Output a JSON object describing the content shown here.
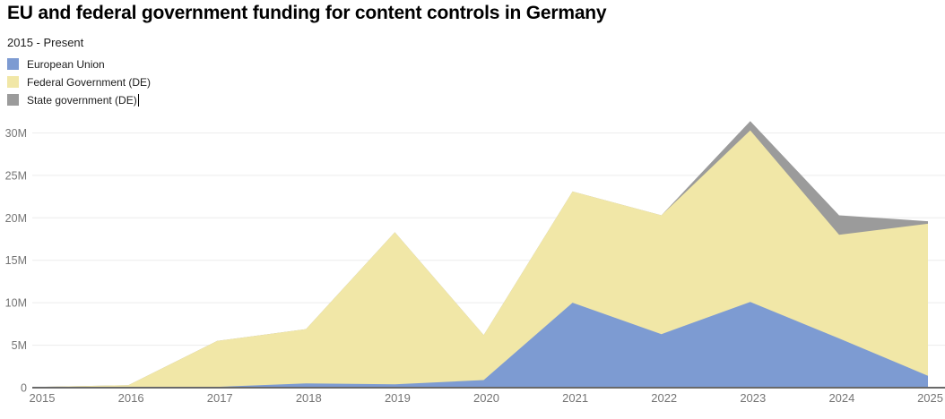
{
  "header": {
    "title": "EU and federal government funding for content controls in Germany",
    "subtitle": "2015 - Present"
  },
  "legend": {
    "caret_after_index": 2
  },
  "colors": {
    "background": "#ffffff",
    "gridline": "#ececec",
    "axis_line": "#696969",
    "tick_label": "#757575",
    "title_text": "#000000",
    "legend_text": "#1c1c1c"
  },
  "chart_data": {
    "type": "area",
    "stacked": true,
    "title": "EU and federal government funding for content controls in Germany",
    "subtitle": "2015 - Present",
    "x": [
      "2015",
      "2016",
      "2017",
      "2018",
      "2019",
      "2020",
      "2021",
      "2022",
      "2023",
      "2024",
      "2025"
    ],
    "units": "millions",
    "series": [
      {
        "name": "European Union",
        "color": "#7d9bd2",
        "values": [
          0,
          0,
          0.1,
          0.5,
          0.4,
          0.9,
          10,
          6.3,
          10.1,
          5.8,
          1.4
        ]
      },
      {
        "name": "Federal Government (DE)",
        "color": "#f1e7a7",
        "values": [
          0.1,
          0.3,
          5.4,
          6.4,
          17.9,
          5.3,
          13.1,
          14,
          20.2,
          12.2,
          17.9
        ]
      },
      {
        "name": "State government (DE)",
        "color": "#9b9b9b",
        "values": [
          0,
          0,
          0,
          0,
          0,
          0,
          0,
          0,
          1.1,
          2.3,
          0.3
        ]
      }
    ],
    "totals": [
      0.1,
      0.3,
      5.5,
      6.9,
      18.3,
      6.2,
      23.1,
      20.3,
      31.4,
      20.3,
      19.6
    ],
    "xlabel": "",
    "ylabel": "",
    "ylim": [
      0,
      30
    ],
    "yticks": [
      {
        "value": 0,
        "label": "0"
      },
      {
        "value": 5,
        "label": "5M"
      },
      {
        "value": 10,
        "label": "10M"
      },
      {
        "value": 15,
        "label": "15M"
      },
      {
        "value": 20,
        "label": "20M"
      },
      {
        "value": 25,
        "label": "25M"
      },
      {
        "value": 30,
        "label": "30M"
      }
    ],
    "grid": true,
    "legend_position": "top-left"
  }
}
